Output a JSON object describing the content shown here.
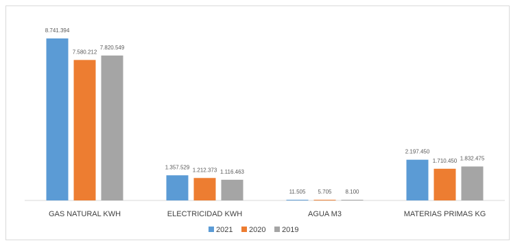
{
  "chart_data": {
    "type": "bar",
    "title": "",
    "xlabel": "",
    "ylabel": "",
    "categories": [
      "GAS NATURAL KWH",
      "ELECTRICIDAD KWH",
      "AGUA M3",
      "MATERIAS PRIMAS KG"
    ],
    "series": [
      {
        "name": "2021",
        "color": "#5b9bd5",
        "values": [
          8741394,
          1357529,
          11505,
          2197450
        ],
        "labels": [
          "8.741.394",
          "1.357.529",
          "11.505",
          "2.197.450"
        ]
      },
      {
        "name": "2020",
        "color": "#ed7d31",
        "values": [
          7580212,
          1212373,
          5705,
          1710450
        ],
        "labels": [
          "7.580.212",
          "1.212.373",
          "5.705",
          "1.710.450"
        ]
      },
      {
        "name": "2019",
        "color": "#a5a5a5",
        "values": [
          7820549,
          1116463,
          8100,
          1832475
        ],
        "labels": [
          "7.820.549",
          "1.116.463",
          "8.100",
          "1.832.475"
        ]
      }
    ],
    "ylim": [
      0,
      9000000
    ],
    "grid": false,
    "legend": "bottom"
  }
}
